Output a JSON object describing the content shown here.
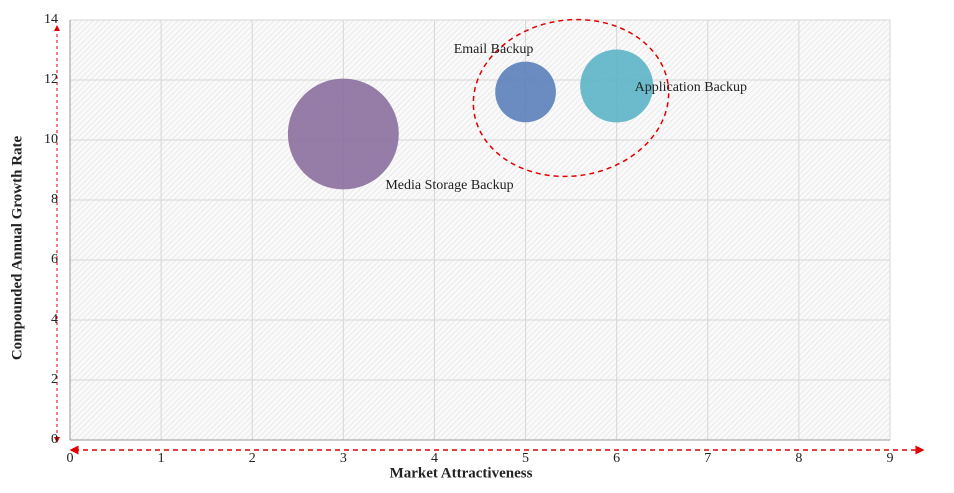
{
  "chart_data": {
    "type": "bubble",
    "x_label": "Market Attractiveness",
    "y_label": "Compounded  Annual  Growth Rate",
    "xlim": [
      0,
      9
    ],
    "xticks": [
      0,
      1,
      2,
      3,
      4,
      5,
      6,
      7,
      8,
      9
    ],
    "ylim": [
      0,
      14
    ],
    "yticks": [
      0,
      2,
      4,
      6,
      8,
      10,
      12,
      14
    ],
    "grid": true,
    "series": [
      {
        "name": "Media Storage Backup",
        "color": "#8a6f9e",
        "x": [
          3
        ],
        "values": [
          10.2
        ],
        "sizes": [
          3.0
        ]
      },
      {
        "name": "Email Backup",
        "color": "#5b80ba",
        "x": [
          5
        ],
        "values": [
          11.6
        ],
        "sizes": [
          0.9
        ]
      },
      {
        "name": "Application Backup",
        "color": "#5cb4c7",
        "x": [
          6
        ],
        "values": [
          11.8
        ],
        "sizes": [
          1.3
        ]
      }
    ]
  }
}
